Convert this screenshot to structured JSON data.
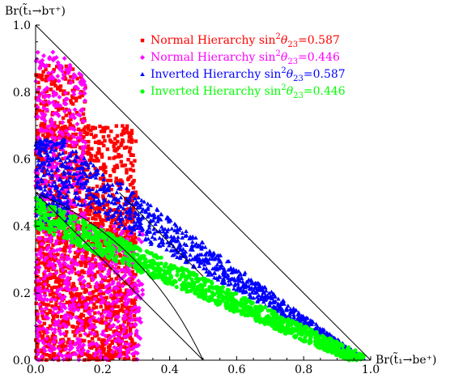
{
  "chart_data": {
    "type": "scatter",
    "xlabel": "Br(t̃₁→be⁺)",
    "ylabel": "Br(t̃₁→bτ⁺)",
    "xlim": [
      0,
      1
    ],
    "ylim": [
      0,
      1
    ],
    "xticks": [
      "0.0",
      "0.2",
      "0.4",
      "0.6",
      "0.8",
      "1.0"
    ],
    "yticks": [
      "0.0",
      "0.2",
      "0.4",
      "0.6",
      "0.8",
      "1.0"
    ],
    "legend_position": "top-right",
    "reference_lines": [
      {
        "x": [
          0,
          1
        ],
        "y": [
          1,
          0
        ]
      },
      {
        "x": [
          0,
          0.5
        ],
        "y": [
          0.5,
          0
        ]
      },
      {
        "x": [
          0.25,
          0.5
        ],
        "y": [
          0.5,
          0.25
        ]
      }
    ],
    "series": [
      {
        "name": "Normal Hierarchy sin²θ₂₃=0.587",
        "name_main": "Normal Hierarchy sin",
        "name_exp": "2",
        "name_theta": "θ",
        "name_sub": "23",
        "name_value": "=0.587",
        "marker": "square",
        "color": "#ff0000",
        "regions": [
          {
            "x": [
              0.0,
              0.3
            ],
            "y": [
              0.0,
              0.45
            ],
            "n": 1300
          },
          {
            "x": [
              0.0,
              0.3
            ],
            "y": [
              0.45,
              0.7
            ],
            "n": 500
          },
          {
            "x": [
              0.0,
              0.15
            ],
            "y": [
              0.65,
              0.88
            ],
            "n": 180
          }
        ]
      },
      {
        "name": "Normal Hierarchy sin²θ₂₃=0.446",
        "name_main": "Normal Hierarchy sin",
        "name_exp": "2",
        "name_theta": "θ",
        "name_sub": "23",
        "name_value": "=0.446",
        "marker": "diamond",
        "color": "#ff00ff",
        "regions": [
          {
            "x": [
              0.0,
              0.32
            ],
            "y": [
              0.0,
              0.4
            ],
            "n": 600
          },
          {
            "x": [
              0.0,
              0.15
            ],
            "y": [
              0.4,
              0.92
            ],
            "n": 350
          }
        ]
      },
      {
        "name": "Inverted Hierarchy sin²θ₂₃=0.587",
        "name_main": "Inverted Hierarchy sin",
        "name_exp": "2",
        "name_theta": "θ",
        "name_sub": "23",
        "name_value": "=0.587",
        "marker": "triangle",
        "color": "#0000ff",
        "regions": [
          {
            "x": [
              0.0,
              0.1
            ],
            "y": [
              0.4,
              0.66
            ],
            "n": 250
          },
          {
            "x": [
              0.1,
              0.98
            ],
            "y": [
              0.0,
              0.0
            ],
            "n": 900,
            "band": true,
            "offset": [
              0.04,
              0.18
            ]
          }
        ]
      },
      {
        "name": "Inverted Hierarchy sin²θ₂₃=0.446",
        "name_main": "Inverted Hierarchy sin",
        "name_exp": "2",
        "name_theta": "θ",
        "name_sub": "23",
        "name_value": "=0.446",
        "marker": "circle",
        "color": "#00ff00",
        "regions": [
          {
            "x": [
              0.0,
              0.98
            ],
            "y": [
              0.0,
              0.0
            ],
            "n": 1100,
            "line": true
          }
        ]
      }
    ]
  }
}
